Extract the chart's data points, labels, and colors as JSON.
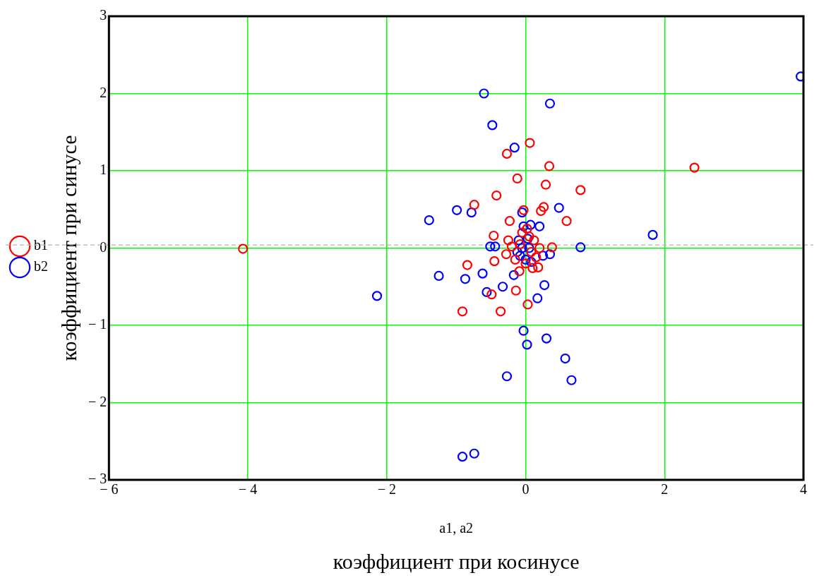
{
  "chart_data": {
    "type": "scatter",
    "xlabel": "коэффициент при косинусе",
    "ylabel": "коэффициент при синусе",
    "annotations": [
      "a1, a2"
    ],
    "xlim": [
      -6,
      4
    ],
    "xticks": [
      -6,
      -4,
      -2,
      0,
      2,
      4
    ],
    "ylim": [
      -3,
      3
    ],
    "yticks": [
      -3,
      -2,
      -1,
      0,
      1,
      2,
      3
    ],
    "grid": true,
    "legend": "left",
    "marker": "circle",
    "ref_lines": [
      {
        "axis": "y",
        "value": 0.04,
        "color": "#b4b4b4",
        "line_style": "dashed"
      }
    ],
    "series": [
      {
        "name": "b1",
        "color": "#ff0000",
        "x": [
          2.43,
          -4.07,
          0.06,
          -0.27,
          0.34,
          -0.12,
          0.29,
          0.79,
          -0.74,
          -0.42,
          0.22,
          0.26,
          0.59,
          -0.23,
          -0.03,
          -0.84,
          -0.91,
          -0.36,
          -0.49,
          -0.14,
          0.03,
          -0.45,
          -0.46,
          0.18,
          0.1,
          0.38,
          -0.09,
          -0.28,
          -0.25,
          -0.05,
          0.05,
          0.12,
          -0.15,
          0.15,
          0.0,
          -0.08,
          0.08,
          0.2,
          -0.2,
          0.02
        ],
        "values": [
          1.04,
          -0.01,
          1.36,
          1.22,
          1.06,
          0.9,
          0.82,
          0.75,
          0.56,
          0.68,
          0.48,
          0.53,
          0.35,
          0.35,
          0.49,
          -0.22,
          -0.82,
          -0.82,
          -0.6,
          -0.55,
          -0.73,
          -0.17,
          0.16,
          -0.25,
          -0.26,
          0.01,
          -0.3,
          -0.08,
          0.1,
          0.2,
          0.15,
          0.1,
          -0.15,
          -0.12,
          -0.2,
          0.05,
          -0.05,
          0.0,
          0.02,
          0.25
        ]
      },
      {
        "name": "b2",
        "color": "#0000ff",
        "x": [
          3.96,
          -0.6,
          0.35,
          -0.48,
          -0.16,
          -1.39,
          -0.99,
          -0.78,
          0.48,
          -0.05,
          1.83,
          -0.51,
          -0.44,
          0.79,
          -2.14,
          -1.25,
          -0.62,
          -0.87,
          -0.33,
          -0.56,
          -0.17,
          0.17,
          0.27,
          -0.03,
          0.02,
          0.3,
          0.57,
          0.66,
          -0.27,
          -0.91,
          -0.74,
          0.07,
          0.2,
          -0.03,
          -0.1,
          -0.05,
          0.05,
          -0.08,
          0.0,
          0.08,
          -0.12,
          0.03,
          0.35,
          0.25
        ],
        "values": [
          2.22,
          2.0,
          1.87,
          1.59,
          1.3,
          0.36,
          0.49,
          0.46,
          0.52,
          0.46,
          0.17,
          0.02,
          0.02,
          0.01,
          -0.62,
          -0.36,
          -0.33,
          -0.4,
          -0.5,
          -0.57,
          -0.35,
          -0.65,
          -0.48,
          -1.07,
          -1.25,
          -1.17,
          -1.43,
          -1.71,
          -1.66,
          -2.7,
          -2.66,
          0.3,
          0.28,
          0.28,
          0.1,
          0.0,
          0.0,
          -0.1,
          -0.15,
          -0.18,
          -0.05,
          0.12,
          -0.08,
          -0.1
        ]
      }
    ]
  }
}
